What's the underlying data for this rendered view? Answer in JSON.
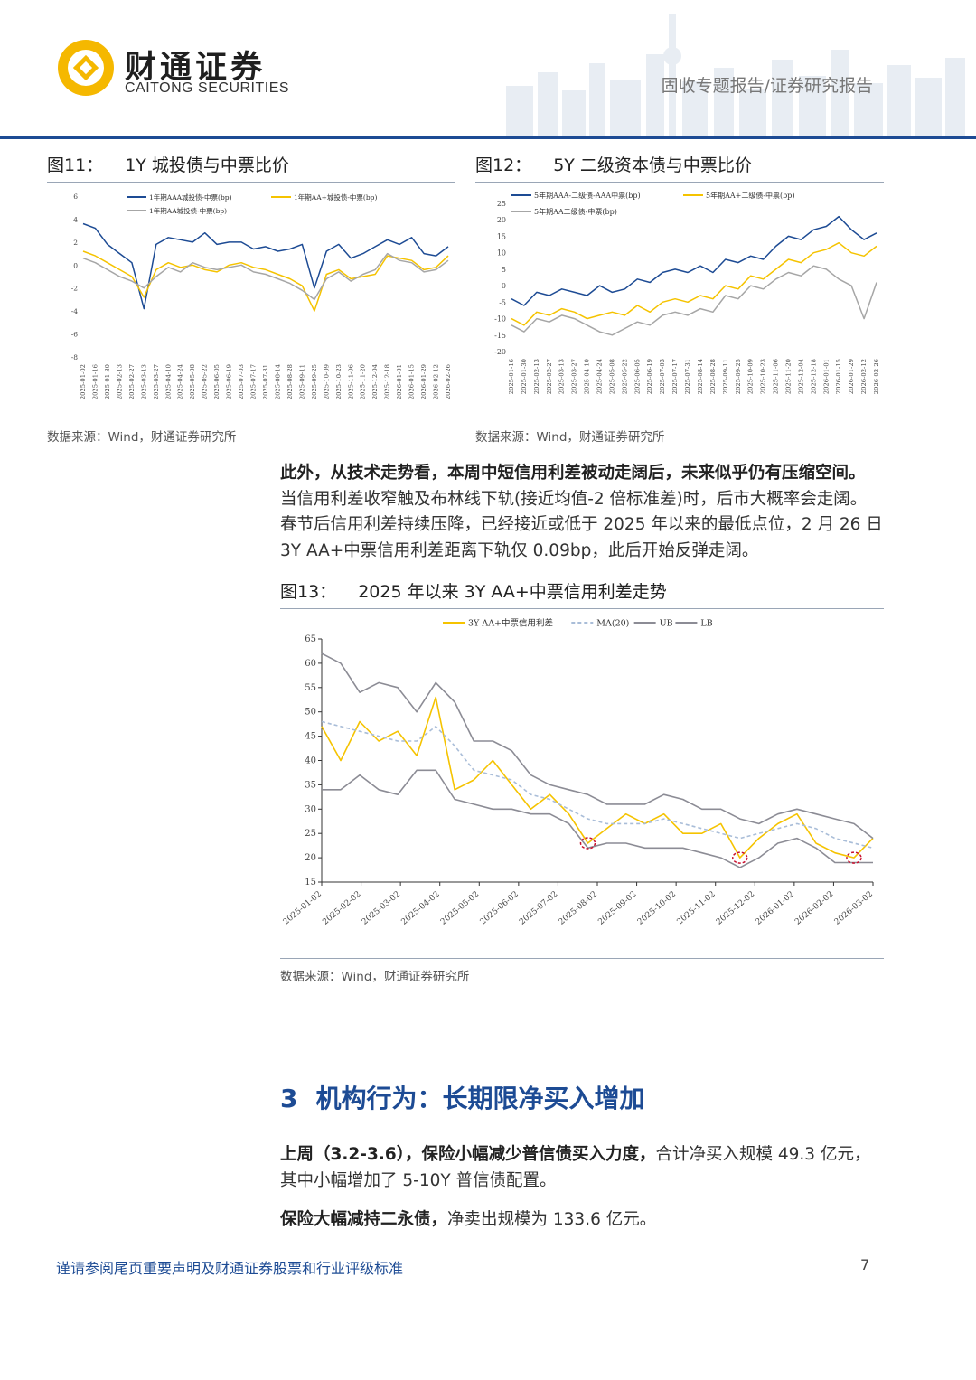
{
  "header": {
    "brand_cn": "财通证券",
    "brand_en": "CAITONG SECURITIES",
    "report_type": "固收专题报告/证券研究报告",
    "accent_color": "#1d4b94",
    "logo_color": "#f5b800"
  },
  "fig11": {
    "num": "图11：",
    "title": "1Y 城投债与中票比价",
    "source": "数据来源：Wind，财通证券研究所"
  },
  "fig12": {
    "num": "图12：",
    "title": "5Y 二级资本债与中票比价",
    "source": "数据来源：Wind，财通证券研究所"
  },
  "body": {
    "para1_bold": "此外，从技术走势看，本周中短信用利差被动走阔后，未来似乎仍有压缩空间。",
    "para1_lines": [
      "当信用利差收窄触及布林线下轨(接近均值-2 倍标准差)时，后市大概率会走阔。",
      "春节后信用利差持续压降，已经接近或低于 2025 年以来的最低点位，2 月 26 日",
      "3Y AA+中票信用利差距离下轨仅 0.09bp，此后开始反弹走阔。"
    ]
  },
  "fig13": {
    "num": "图13：",
    "title": "2025 年以来 3Y AA+中票信用利差走势",
    "source": "数据来源：Wind，财通证券研究所"
  },
  "section": {
    "number": "3",
    "title": "机构行为：长期限净买入增加",
    "para1_bold": "上周（3.2-3.6），保险小幅减少普信债买入力度，",
    "para1_rest": "合计净买入规模 49.3 亿元，",
    "para1_line2": "其中小幅增加了 5-10Y 普信债配置。",
    "para2_bold": "保险大幅减持二永债，",
    "para2_rest": "净卖出规模为 133.6 亿元。"
  },
  "footer": {
    "disclaimer": "谨请参阅尾页重要声明及财通证券股票和行业评级标准",
    "page_number": "7"
  },
  "chart_data": [
    {
      "id": "fig11",
      "type": "line",
      "ylim": [
        -8,
        6
      ],
      "yticks": [
        "6",
        "4",
        "2",
        "0",
        "-2",
        "-4",
        "-6",
        "-8"
      ],
      "x_tick_labels": [
        "2025-01-02",
        "2025-01-16",
        "2025-01-30",
        "2025-02-13",
        "2025-02-27",
        "2025-03-13",
        "2025-03-27",
        "2025-04-10",
        "2025-04-24",
        "2025-05-08",
        "2025-05-22",
        "2025-06-05",
        "2025-06-19",
        "2025-07-03",
        "2025-07-17",
        "2025-07-31",
        "2025-08-14",
        "2025-08-28",
        "2025-09-11",
        "2025-09-25",
        "2025-10-09",
        "2025-10-23",
        "2025-11-06",
        "2025-11-20",
        "2025-12-04",
        "2025-12-18",
        "2026-01-01",
        "2026-01-15",
        "2026-01-29",
        "2026-02-12",
        "2026-02-26"
      ],
      "x_anchor_index": [
        0,
        3,
        4,
        7,
        10,
        14,
        17,
        19,
        20,
        24,
        25,
        27,
        29,
        30
      ],
      "series": [
        {
          "name": "1年期AAA城投债-中票(bp)",
          "color": "#1d4b94",
          "values": [
            3.6,
            3.2,
            1.8,
            1.0,
            0.2,
            -3.8,
            1.8,
            2.4,
            2.2,
            2.0,
            2.8,
            1.8,
            2.0,
            2.0,
            1.4,
            1.6,
            1.2,
            1.4,
            1.8,
            -2.0,
            1.2,
            1.8,
            0.6,
            1.0,
            1.6,
            2.2,
            1.8,
            2.4,
            1.0,
            0.8,
            1.6
          ]
        },
        {
          "name": "1年期AA+城投债-中票(bp)",
          "color": "#f5c300",
          "values": [
            1.2,
            0.8,
            0.2,
            -0.4,
            -1.0,
            -2.8,
            -0.4,
            0.2,
            -0.2,
            0.0,
            -0.4,
            -0.6,
            0.0,
            0.2,
            -0.2,
            -0.4,
            -0.8,
            -1.2,
            -1.8,
            -4.0,
            -0.8,
            -0.4,
            -1.2,
            -1.0,
            -0.8,
            0.8,
            0.6,
            0.4,
            -0.4,
            -0.2,
            0.8
          ]
        },
        {
          "name": "1年期AA城投债-中票(bp)",
          "color": "#a6a6a6",
          "values": [
            0.6,
            0.2,
            -0.4,
            -1.0,
            -1.4,
            -2.0,
            -1.0,
            -0.2,
            -0.6,
            0.2,
            -0.2,
            -0.4,
            -0.2,
            0.0,
            -0.6,
            -0.8,
            -1.2,
            -1.6,
            -2.2,
            -3.0,
            -1.2,
            -0.6,
            -1.4,
            -0.8,
            -0.4,
            1.0,
            0.4,
            0.2,
            -0.6,
            -0.4,
            0.4
          ]
        }
      ]
    },
    {
      "id": "fig12",
      "type": "line",
      "ylim": [
        -20,
        25
      ],
      "yticks": [
        "25",
        "20",
        "15",
        "10",
        "5",
        "0",
        "-5",
        "-10",
        "-15",
        "-20"
      ],
      "x_tick_labels": [
        "2025-01-16",
        "2025-01-30",
        "2025-02-13",
        "2025-02-27",
        "2025-03-13",
        "2025-03-27",
        "2025-04-10",
        "2025-04-24",
        "2025-05-08",
        "2025-05-22",
        "2025-06-05",
        "2025-06-19",
        "2025-07-03",
        "2025-07-17",
        "2025-07-31",
        "2025-08-14",
        "2025-08-28",
        "2025-09-11",
        "2025-09-25",
        "2025-10-09",
        "2025-10-23",
        "2025-11-06",
        "2025-11-20",
        "2025-12-04",
        "2025-12-18",
        "2026-01-01",
        "2026-01-15",
        "2026-01-29",
        "2026-02-12",
        "2026-02-26"
      ],
      "series": [
        {
          "name": "5年期AAA-二级债-AAA中票(bp)",
          "color": "#1d4b94",
          "values": [
            -4,
            -6,
            -2,
            -3,
            -1,
            -2,
            -3,
            0,
            -2,
            -1,
            2,
            1,
            4,
            5,
            4,
            6,
            4,
            8,
            7,
            9,
            8,
            12,
            15,
            14,
            17,
            18,
            21,
            17,
            14,
            16
          ]
        },
        {
          "name": "5年期AA+二级债-中票(bp)",
          "color": "#f5c300",
          "values": [
            -10,
            -12,
            -8,
            -9,
            -7,
            -8,
            -10,
            -9,
            -8,
            -9,
            -6,
            -8,
            -5,
            -4,
            -5,
            -3,
            -4,
            0,
            -1,
            3,
            2,
            5,
            8,
            7,
            10,
            11,
            13,
            10,
            9,
            12
          ]
        },
        {
          "name": "5年期AA二级债-中票(bp)",
          "color": "#a6a6a6",
          "values": [
            -12,
            -14,
            -10,
            -11,
            -9,
            -10,
            -12,
            -14,
            -15,
            -13,
            -11,
            -12,
            -9,
            -8,
            -9,
            -7,
            -8,
            -3,
            -4,
            0,
            -1,
            2,
            4,
            3,
            6,
            5,
            2,
            0,
            -10,
            1
          ]
        }
      ]
    },
    {
      "id": "fig13",
      "type": "line",
      "ylim": [
        15,
        65
      ],
      "yticks": [
        "65",
        "60",
        "55",
        "50",
        "45",
        "40",
        "35",
        "30",
        "25",
        "20",
        "15"
      ],
      "x_tick_labels": [
        "2025-01-02",
        "2025-02-02",
        "2025-03-02",
        "2025-04-02",
        "2025-05-02",
        "2025-06-02",
        "2025-07-02",
        "2025-08-02",
        "2025-09-02",
        "2025-10-02",
        "2025-11-02",
        "2025-12-02",
        "2026-01-02",
        "2026-02-02",
        "2026-03-02"
      ],
      "series": [
        {
          "name": "3Y AA+中票信用利差",
          "color": "#f5c300",
          "values": [
            47,
            40,
            48,
            44,
            46,
            41,
            53,
            34,
            36,
            40,
            35,
            30,
            33,
            29,
            23,
            26,
            29,
            27,
            29,
            25,
            25,
            27,
            20,
            24,
            27,
            29,
            23,
            21,
            20,
            24
          ]
        },
        {
          "name": "MA(20)",
          "color": "#a9bdd8",
          "dash": true,
          "values": [
            48,
            47,
            46,
            45,
            44,
            44,
            47,
            43,
            38,
            37,
            36,
            33,
            32,
            30,
            28,
            27,
            27,
            27,
            28,
            27,
            26,
            25,
            24,
            25,
            26,
            27,
            26,
            24,
            23,
            22
          ]
        },
        {
          "name": "UB",
          "color": "#8c8c95",
          "values": [
            62,
            60,
            54,
            56,
            55,
            50,
            56,
            52,
            44,
            44,
            42,
            37,
            35,
            34,
            33,
            31,
            31,
            31,
            33,
            32,
            30,
            30,
            28,
            27,
            29,
            30,
            29,
            28,
            27,
            24
          ]
        },
        {
          "name": "LB",
          "color": "#8c8c95",
          "values": [
            34,
            34,
            37,
            34,
            33,
            38,
            38,
            32,
            31,
            30,
            30,
            29,
            29,
            27,
            22,
            23,
            23,
            22,
            22,
            22,
            21,
            20,
            18,
            20,
            23,
            24,
            22,
            19,
            19,
            19
          ]
        }
      ],
      "annotations": [
        {
          "shape": "circle",
          "at_index": 14
        },
        {
          "shape": "circle",
          "at_index": 22
        },
        {
          "shape": "circle",
          "at_index": 28
        }
      ]
    }
  ]
}
